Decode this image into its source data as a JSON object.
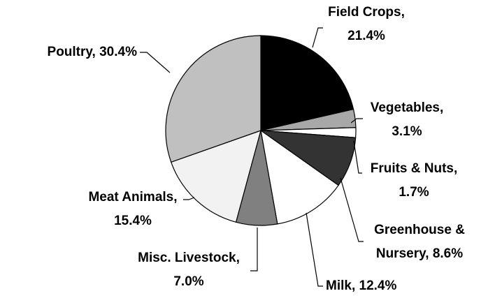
{
  "chart_data": {
    "type": "pie",
    "labels": [
      [
        "Field Crops,",
        "21.4%"
      ],
      [
        "Vegetables,",
        "3.1%"
      ],
      [
        "Fruits & Nuts,",
        "1.7%"
      ],
      [
        "Greenhouse &",
        "Nursery, 8.6%"
      ],
      [
        "Milk, 12.4%"
      ],
      [
        "Misc. Livestock,",
        "7.0%"
      ],
      [
        "Meat Animals,",
        "15.4%"
      ],
      [
        "Poultry, 30.4%"
      ]
    ],
    "values": [
      21.4,
      3.1,
      1.7,
      8.6,
      12.4,
      7.0,
      15.4,
      30.4
    ],
    "colors": [
      "#000000",
      "#a8a8a8",
      "#ffffff",
      "#333333",
      "#ffffff",
      "#808080",
      "#f2f2f2",
      "#c0c0c0"
    ]
  }
}
